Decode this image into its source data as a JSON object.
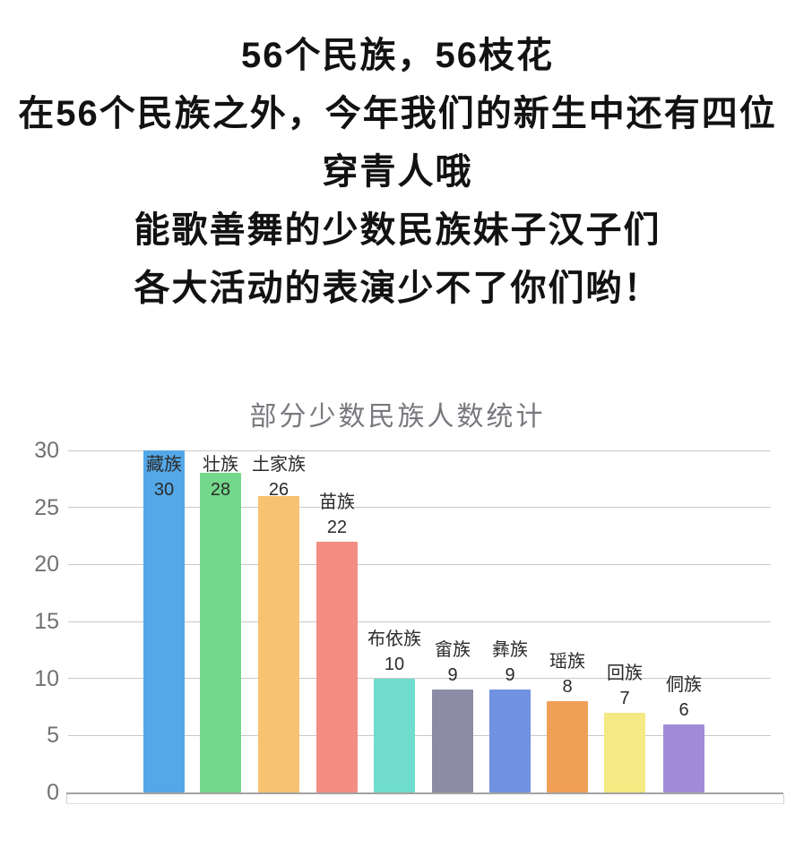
{
  "header": {
    "lines": [
      "56个民族，56枝花",
      "在56个民族之外，今年我们的新生中还有四位",
      "穿青人哦",
      "能歌善舞的少数民族妹子汉子们",
      "各大活动的表演少不了你们哟！"
    ]
  },
  "chart_data": {
    "type": "bar",
    "title": "部分少数民族人数统计",
    "categories": [
      "藏族",
      "壮族",
      "土家族",
      "苗族",
      "布依族",
      "畲族",
      "彝族",
      "瑶族",
      "回族",
      "侗族"
    ],
    "values": [
      30,
      28,
      26,
      22,
      10,
      9,
      9,
      8,
      7,
      6
    ],
    "bar_colors": [
      "#54A8E8",
      "#73D88B",
      "#F7C271",
      "#F48D83",
      "#6FDCCD",
      "#8C8CA5",
      "#7191E1",
      "#F0A056",
      "#F4E982",
      "#A18BD8"
    ],
    "y_ticks": [
      30,
      25,
      20,
      15,
      10,
      5,
      0
    ],
    "ylim": [
      0,
      30
    ],
    "xlabel": "",
    "ylabel": "",
    "grid": true,
    "legend": false,
    "data_labels": "ethnic group name and count shown above each bar",
    "colors": {
      "title_text": "#77797E",
      "axis_tick_text": "#6F7275",
      "gridline": "#C9C9C9",
      "zero_axis_line": "#A3A3A3",
      "bar_label_text": "#2B2B2B",
      "header_text": "#121212",
      "background": "#FFFFFF"
    }
  }
}
